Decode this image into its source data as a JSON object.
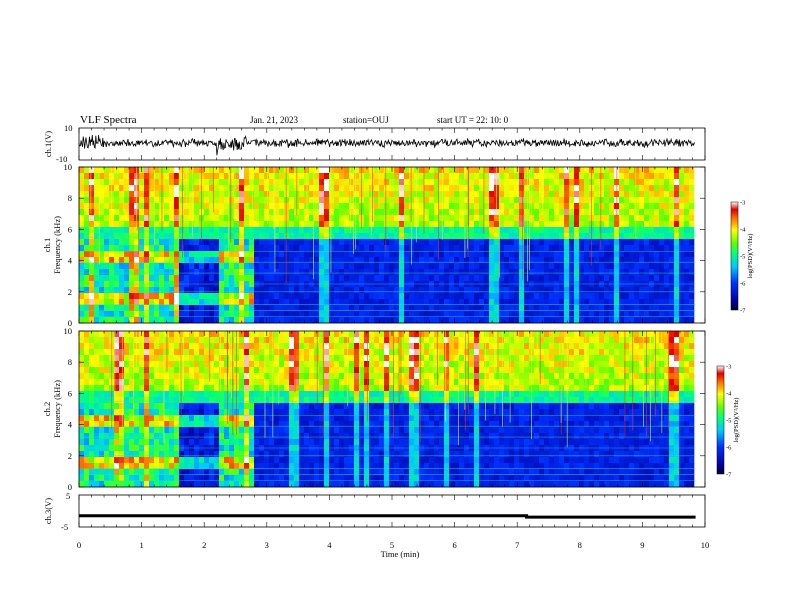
{
  "header": {
    "title": "VLF Spectra",
    "date": "Jan. 21, 2023",
    "station": "station=OUJ",
    "start": "start UT =  22: 10: 0"
  },
  "chart_data": [
    {
      "type": "line",
      "panel": "ch.1 waveform",
      "ylabel": "ch.1(V)",
      "ylim": [
        -10,
        10
      ],
      "yticks": [
        "10",
        "-10"
      ],
      "xlim": [
        0,
        10
      ]
    },
    {
      "type": "heatmap",
      "panel": "ch.1 spectrogram",
      "ylabel": "ch.1",
      "ylabel2": "Frequency (kHz)",
      "ylim": [
        0,
        10
      ],
      "yticks": [
        "0",
        "2",
        "4",
        "6",
        "8",
        "10"
      ],
      "xlim": [
        0,
        10
      ],
      "colorbar": {
        "label": "log(PSD)(V²/Hz)",
        "range": [
          -7,
          -3
        ],
        "ticks": [
          "-3",
          "-4",
          "-5",
          "-6",
          "-7"
        ]
      }
    },
    {
      "type": "heatmap",
      "panel": "ch.2 spectrogram",
      "ylabel": "ch.2",
      "ylabel2": "Frequency (kHz)",
      "ylim": [
        0,
        10
      ],
      "yticks": [
        "0",
        "2",
        "4",
        "6",
        "8",
        "10"
      ],
      "xlim": [
        0,
        10
      ],
      "colorbar": {
        "label": "log(PSD)(V²/Hz)",
        "range": [
          -7,
          -3
        ],
        "ticks": [
          "-3",
          "-4",
          "-5",
          "-6",
          "-7"
        ]
      }
    },
    {
      "type": "line",
      "panel": "ch.3 waveform",
      "ylabel": "ch.3(V)",
      "ylim": [
        -5,
        5
      ],
      "yticks": [
        "5",
        "-5"
      ],
      "xlim": [
        0,
        10
      ],
      "xticks": [
        "0",
        "1",
        "2",
        "3",
        "4",
        "5",
        "6",
        "7",
        "8",
        "9",
        "10"
      ],
      "xlabel": "Time (min)",
      "series": [
        {
          "x": [
            0,
            7.15,
            7.15,
            9.85
          ],
          "y": [
            -1.5,
            -1.5,
            -1.9,
            -1.9
          ]
        }
      ]
    }
  ]
}
